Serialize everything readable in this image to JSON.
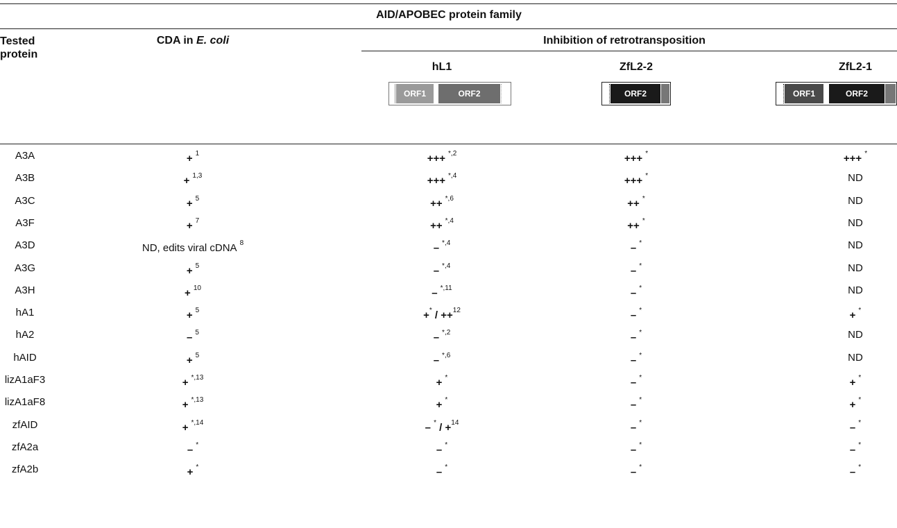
{
  "title": "AID/APOBEC protein family",
  "headers": {
    "tested_protein": [
      "Tested",
      "protein"
    ],
    "cda_prefix": "CDA in ",
    "cda_italic": "E. coli",
    "inhibition": "Inhibition of retrotransposition",
    "elements": [
      "hL1",
      "ZfL2-2",
      "ZfL2-1"
    ]
  },
  "diagram_labels": {
    "orf1": "ORF1",
    "orf2": "ORF2"
  },
  "rows": [
    {
      "protein": "A3A",
      "cda": {
        "v": "+",
        "s": "1"
      },
      "hl1": {
        "v": "+++",
        "s": "*,2"
      },
      "zfl22": {
        "v": "+++",
        "s": "*"
      },
      "zfl21": {
        "v": "+++",
        "s": "*"
      }
    },
    {
      "protein": "A3B",
      "cda": {
        "v": "+",
        "s": "1,3"
      },
      "hl1": {
        "v": "+++",
        "s": "*,4"
      },
      "zfl22": {
        "v": "+++",
        "s": "*"
      },
      "zfl21": {
        "v": "ND",
        "s": ""
      }
    },
    {
      "protein": "A3C",
      "cda": {
        "v": "+",
        "s": "5"
      },
      "hl1": {
        "v": "++",
        "s": "*,6"
      },
      "zfl22": {
        "v": "++",
        "s": "*"
      },
      "zfl21": {
        "v": "ND",
        "s": ""
      }
    },
    {
      "protein": "A3F",
      "cda": {
        "v": "+",
        "s": "7"
      },
      "hl1": {
        "v": "++",
        "s": "*,4"
      },
      "zfl22": {
        "v": "++",
        "s": "*"
      },
      "zfl21": {
        "v": "ND",
        "s": ""
      }
    },
    {
      "protein": "A3D",
      "cda": {
        "v": "ND, edits viral cDNA",
        "s": "8"
      },
      "hl1": {
        "v": "–",
        "s": "*,4"
      },
      "zfl22": {
        "v": "–",
        "s": "*"
      },
      "zfl21": {
        "v": "ND",
        "s": ""
      }
    },
    {
      "protein": "A3G",
      "cda": {
        "v": "+",
        "s": "5"
      },
      "hl1": {
        "v": "–",
        "s": "*,4"
      },
      "zfl22": {
        "v": "–",
        "s": "*"
      },
      "zfl21": {
        "v": "ND",
        "s": ""
      }
    },
    {
      "protein": "A3H",
      "cda": {
        "v": "+",
        "s": "10"
      },
      "hl1": {
        "v": "–",
        "s": "*,11"
      },
      "zfl22": {
        "v": "–",
        "s": "*"
      },
      "zfl21": {
        "v": "ND",
        "s": ""
      }
    },
    {
      "protein": "hA1",
      "cda": {
        "v": "+",
        "s": "5"
      },
      "hl1": {
        "v": "+* / ++12",
        "s": ""
      },
      "zfl22": {
        "v": "–",
        "s": "*"
      },
      "zfl21": {
        "v": "+",
        "s": "*"
      }
    },
    {
      "protein": "hA2",
      "cda": {
        "v": "–",
        "s": "5"
      },
      "hl1": {
        "v": "–",
        "s": "*,2"
      },
      "zfl22": {
        "v": "–",
        "s": "*"
      },
      "zfl21": {
        "v": "ND",
        "s": ""
      }
    },
    {
      "protein": "hAID",
      "cda": {
        "v": "+",
        "s": "5"
      },
      "hl1": {
        "v": "–",
        "s": "*,6"
      },
      "zfl22": {
        "v": "–",
        "s": "*"
      },
      "zfl21": {
        "v": "ND",
        "s": ""
      }
    },
    {
      "protein": "lizA1aF3",
      "cda": {
        "v": "+",
        "s": "*,13"
      },
      "hl1": {
        "v": "+",
        "s": "*"
      },
      "zfl22": {
        "v": "–",
        "s": "*"
      },
      "zfl21": {
        "v": "+",
        "s": "*"
      }
    },
    {
      "protein": "lizA1aF8",
      "cda": {
        "v": "+",
        "s": "*,13"
      },
      "hl1": {
        "v": "+",
        "s": "*"
      },
      "zfl22": {
        "v": "–",
        "s": "*"
      },
      "zfl21": {
        "v": "+",
        "s": "*"
      }
    },
    {
      "protein": "zfAID",
      "cda": {
        "v": "+",
        "s": "*,14"
      },
      "hl1": {
        "v": "– * / +14",
        "s": ""
      },
      "zfl22": {
        "v": "–",
        "s": "*"
      },
      "zfl21": {
        "v": "–",
        "s": "*"
      }
    },
    {
      "protein": "zfA2a",
      "cda": {
        "v": "–",
        "s": "*"
      },
      "hl1": {
        "v": "–",
        "s": "*"
      },
      "zfl22": {
        "v": "–",
        "s": "*"
      },
      "zfl21": {
        "v": "–",
        "s": "*"
      }
    },
    {
      "protein": "zfA2b",
      "cda": {
        "v": "+",
        "s": "*"
      },
      "hl1": {
        "v": "–",
        "s": "*"
      },
      "zfl22": {
        "v": "–",
        "s": "*"
      },
      "zfl21": {
        "v": "–",
        "s": "*"
      }
    }
  ]
}
